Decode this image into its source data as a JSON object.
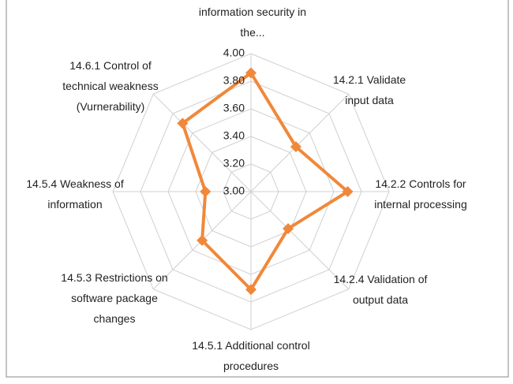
{
  "chart_data": {
    "type": "radar",
    "categories": [
      "information security in the...",
      "14.2.1 Validate input data",
      "14.2.2 Controls for internal processing",
      "14.2.4 Validation of output data",
      "14.5.1 Additional control procedures",
      "14.5.3 Restrictions on software package changes",
      "14.5.4 Weakness of information",
      "14.6.1 Control of technical weakness (Vurnerability)"
    ],
    "series": [
      {
        "color": "#f0883a",
        "values": [
          3.86,
          3.46,
          3.7,
          3.38,
          3.71,
          3.5,
          3.33,
          3.7
        ]
      }
    ],
    "ylim": [
      3,
      4
    ],
    "yticks": [
      {
        "value": 3,
        "label": "3.00"
      },
      {
        "value": 3.2,
        "label": "3.20"
      },
      {
        "value": 3.4,
        "label": "3.40"
      },
      {
        "value": 3.6,
        "label": "3.60"
      },
      {
        "value": 3.8,
        "label": "3.80"
      },
      {
        "value": 4,
        "label": "4.00"
      }
    ],
    "grid": true
  }
}
